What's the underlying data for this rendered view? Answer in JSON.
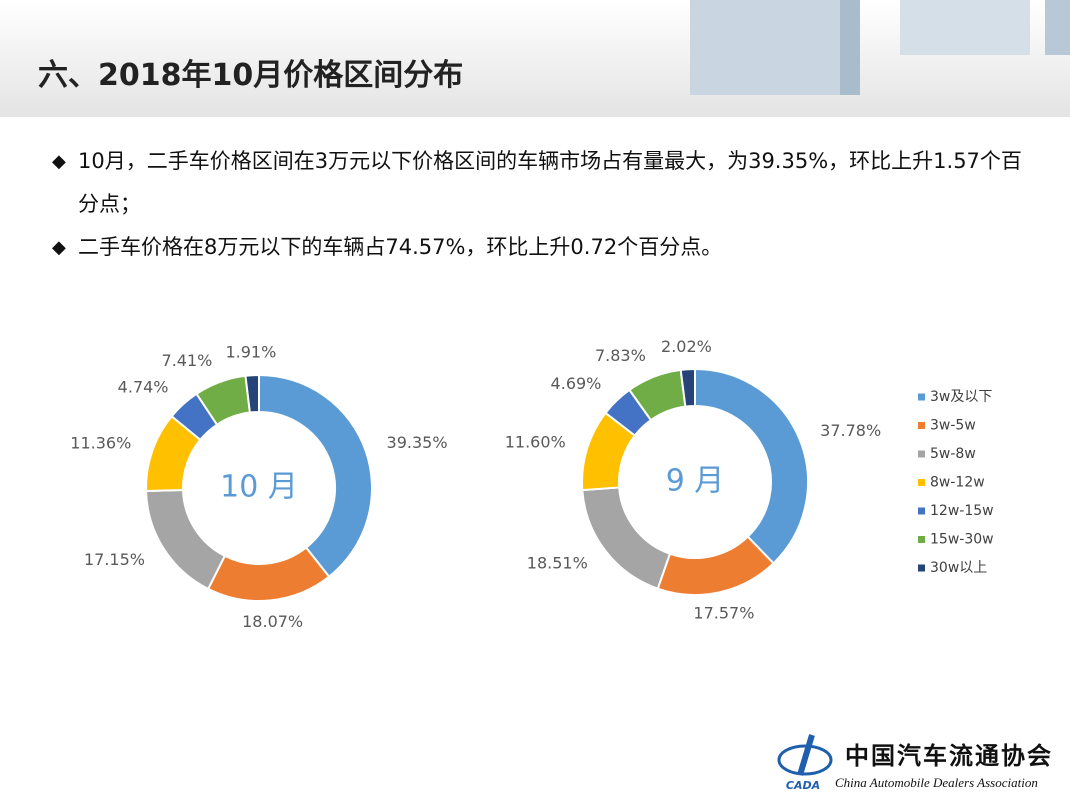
{
  "header": {
    "title": "六、2018年10月价格区间分布"
  },
  "bullets": [
    "10月，二手车价格区间在3万元以下价格区间的车辆市场占有量最大，为39.35%，环比上升1.57个百分点；",
    "二手车价格在8万元以下的车辆占74.57%，环比上升0.72个百分点。"
  ],
  "chart_data": [
    {
      "type": "donut",
      "center_label": "10 月",
      "categories": [
        "3w及以下",
        "3w-5w",
        "5w-8w",
        "8w-12w",
        "12w-15w",
        "15w-30w",
        "30w以上"
      ],
      "values": [
        39.35,
        18.07,
        17.15,
        11.36,
        4.74,
        7.41,
        1.91
      ],
      "value_labels": [
        "39.35%",
        "18.07%",
        "17.15%",
        "11.36%",
        "4.74%",
        "7.41%",
        "1.91%"
      ],
      "colors": [
        "#5b9bd5",
        "#ed7d31",
        "#a5a5a5",
        "#ffc000",
        "#4472c4",
        "#70ad47",
        "#264478"
      ]
    },
    {
      "type": "donut",
      "center_label": "9 月",
      "categories": [
        "3w及以下",
        "3w-5w",
        "5w-8w",
        "8w-12w",
        "12w-15w",
        "15w-30w",
        "30w以上"
      ],
      "values": [
        37.78,
        17.57,
        18.51,
        11.6,
        4.69,
        7.83,
        2.02
      ],
      "value_labels": [
        "37.78%",
        "17.57%",
        "18.51%",
        "11.60%",
        "4.69%",
        "7.83%",
        "2.02%"
      ],
      "colors": [
        "#5b9bd5",
        "#ed7d31",
        "#a5a5a5",
        "#ffc000",
        "#4472c4",
        "#70ad47",
        "#264478"
      ],
      "legend": "right"
    }
  ],
  "footer": {
    "org_cn": "中国汽车流通协会",
    "org_en": "China Automobile Dealers Association",
    "logo_text": "CADA"
  }
}
